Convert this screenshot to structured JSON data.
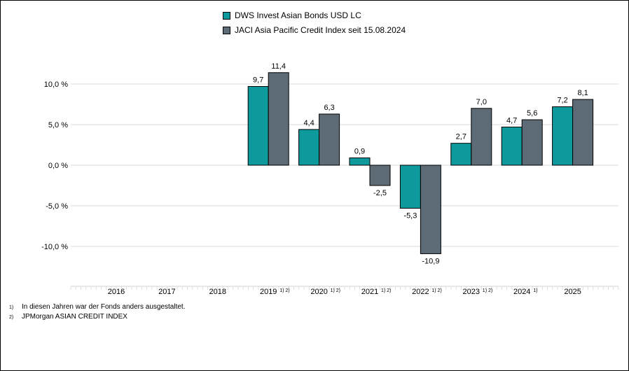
{
  "legend": [
    {
      "label": "DWS Invest Asian Bonds USD LC",
      "color": "#0e9a9c"
    },
    {
      "label": "JACI Asia Pacific Credit Index seit 15.08.2024",
      "color": "#5d6b76"
    }
  ],
  "chart_data": {
    "type": "bar",
    "categories": [
      "2016",
      "2017",
      "2018",
      "2019",
      "2020",
      "2021",
      "2022",
      "2023",
      "2024",
      "2025"
    ],
    "category_notes": [
      "",
      "",
      "",
      "1) 2)",
      "1) 2)",
      "1) 2)",
      "1) 2)",
      "1) 2)",
      "1)",
      ""
    ],
    "series": [
      {
        "name": "DWS Invest Asian Bonds USD LC",
        "color": "#0e9a9c",
        "values": [
          null,
          null,
          null,
          9.7,
          4.4,
          0.9,
          -5.3,
          2.7,
          4.7,
          7.2
        ],
        "labels": [
          "",
          "",
          "",
          "9,7",
          "4,4",
          "0,9",
          "-5,3",
          "2,7",
          "4,7",
          "7,2"
        ]
      },
      {
        "name": "JACI Asia Pacific Credit Index seit 15.08.2024",
        "color": "#5d6b76",
        "values": [
          null,
          null,
          null,
          11.4,
          6.3,
          -2.5,
          -10.9,
          7.0,
          5.6,
          8.1
        ],
        "labels": [
          "",
          "",
          "",
          "11,4",
          "6,3",
          "-2,5",
          "-10,9",
          "7,0",
          "5,6",
          "8,1"
        ]
      }
    ],
    "y_ticks": [
      10,
      5,
      0,
      -5,
      -10
    ],
    "y_tick_labels": [
      "10,0 %",
      "5,0 %",
      "0,0 %",
      "-5,0 %",
      "-10,0 %"
    ],
    "ylim": [
      -15,
      15
    ],
    "grid": true,
    "legend_position": "top"
  },
  "footnotes": [
    {
      "marker": "1)",
      "text": "In diesen Jahren war der Fonds anders ausgestaltet."
    },
    {
      "marker": "2)",
      "text": "JPMorgan ASIAN CREDIT INDEX"
    }
  ]
}
